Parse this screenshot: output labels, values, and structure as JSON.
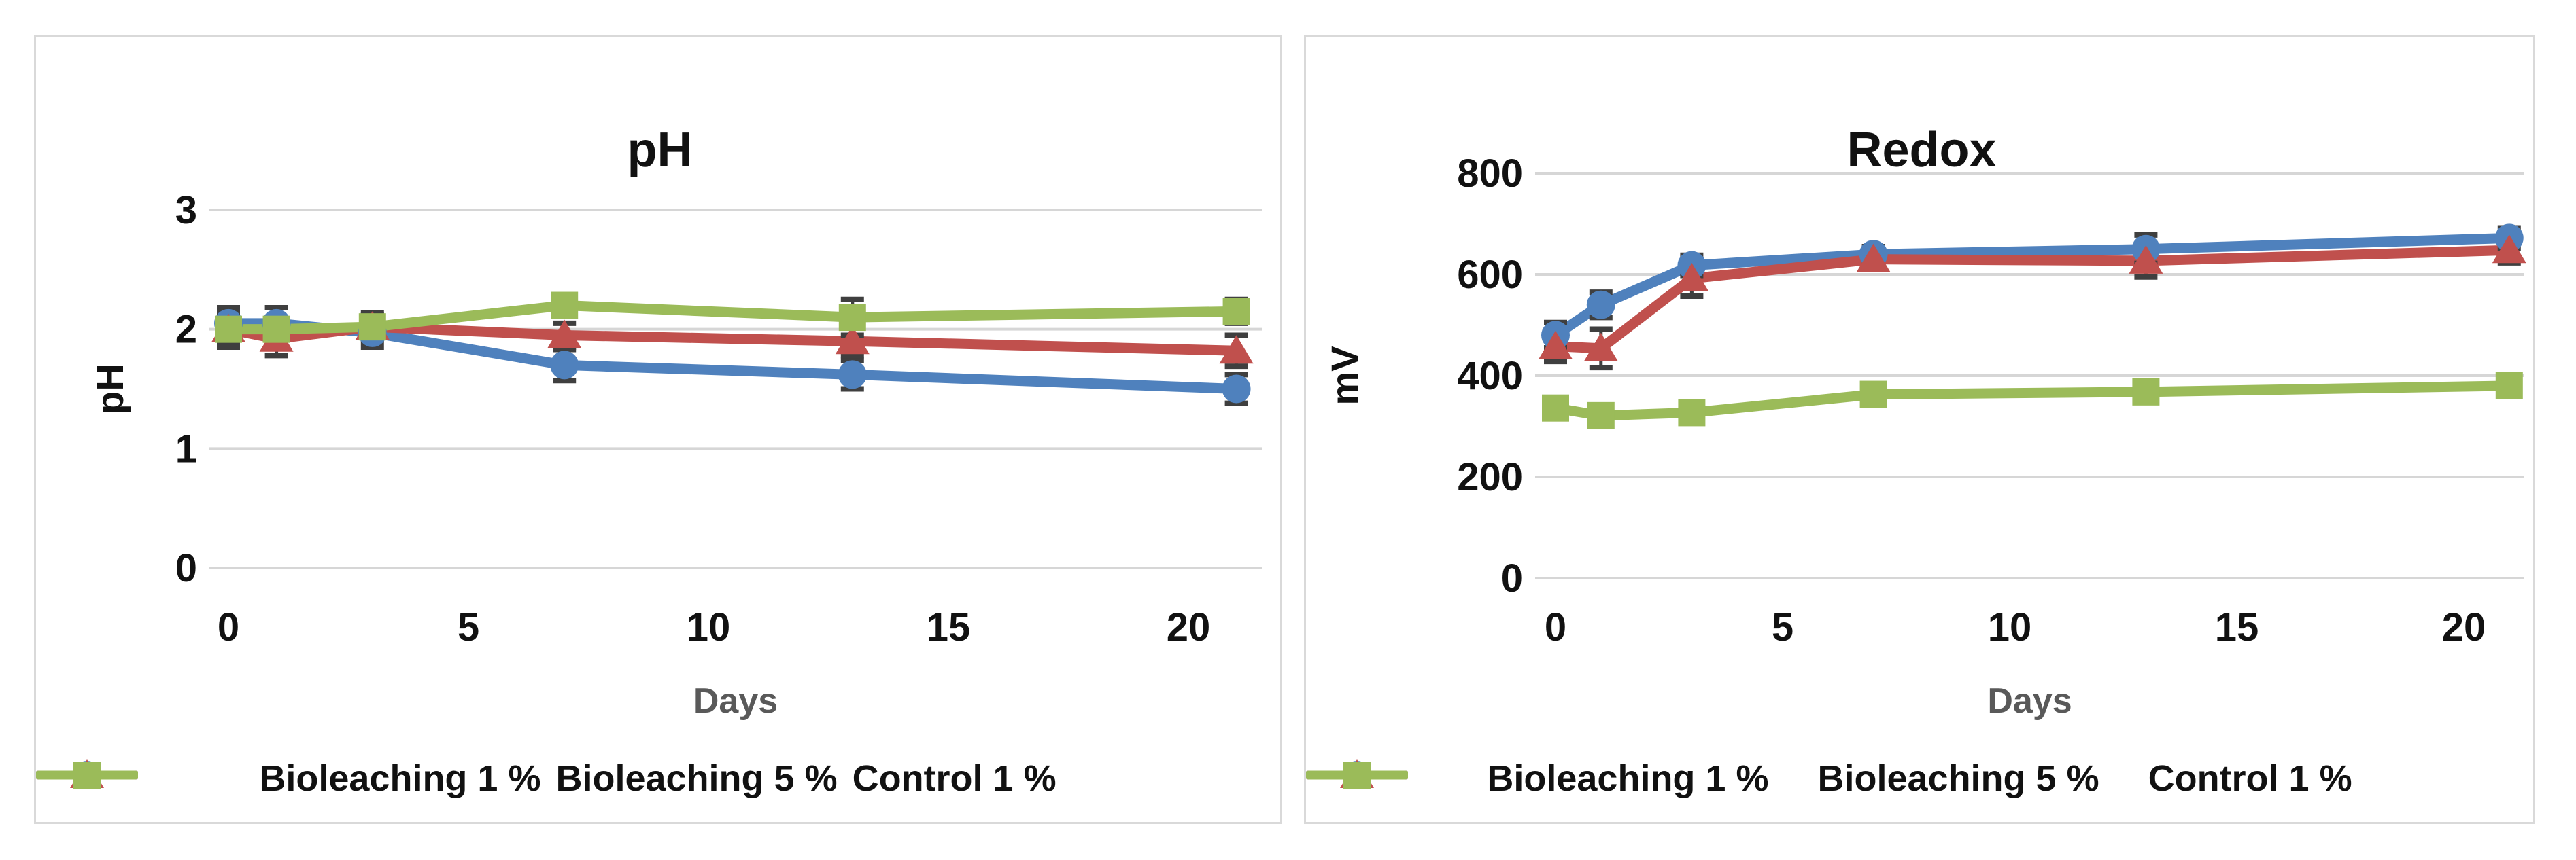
{
  "figure": {
    "background": "#ffffff",
    "panel_border_color": "#d9d9d9",
    "grid_color": "#d6d6d6",
    "error_bar_color": "#3f3f3f",
    "text_color": "#111111",
    "xlabel_color": "#595959"
  },
  "chart_data": [
    {
      "type": "line",
      "title": "pH",
      "ylabel": "pH",
      "xlabel": "Days",
      "x": [
        0,
        1,
        3,
        7,
        13,
        21
      ],
      "xticks": [
        0,
        5,
        10,
        15,
        20
      ],
      "yticks": [
        0,
        1,
        2,
        3
      ],
      "ylim": [
        0,
        3
      ],
      "xlim": [
        0,
        21.6
      ],
      "grid": true,
      "legend_position": "bottom",
      "series": [
        {
          "name": "Bioleaching 1 %",
          "color": "#4F81BD",
          "marker": "circle",
          "values": [
            2.05,
            2.05,
            1.97,
            1.7,
            1.62,
            1.5
          ],
          "errors": [
            0.13,
            0.13,
            0.12,
            0.13,
            0.12,
            0.12
          ]
        },
        {
          "name": "Bioleaching 5 %",
          "color": "#C0504D",
          "marker": "triangle",
          "values": [
            2.0,
            1.92,
            2.02,
            1.95,
            1.9,
            1.82
          ],
          "errors": [
            0.15,
            0.14,
            0.12,
            0.1,
            0.12,
            0.13
          ]
        },
        {
          "name": "Control 1 %",
          "color": "#9BBB59",
          "marker": "square",
          "values": [
            2.0,
            2.0,
            2.02,
            2.2,
            2.1,
            2.15
          ],
          "errors": [
            0.12,
            0.1,
            0.1,
            0.08,
            0.15,
            0.1
          ]
        }
      ]
    },
    {
      "type": "line",
      "title": "Redox",
      "ylabel": "mV",
      "xlabel": "Days",
      "x": [
        0,
        1,
        3,
        7,
        13,
        21
      ],
      "xticks": [
        0,
        5,
        10,
        15,
        20
      ],
      "yticks": [
        0,
        200,
        400,
        600,
        800
      ],
      "ylim": [
        0,
        800
      ],
      "xlim": [
        0,
        21.6
      ],
      "grid": true,
      "legend_position": "bottom",
      "series": [
        {
          "name": "Bioleaching 1 %",
          "color": "#4F81BD",
          "marker": "circle",
          "values": [
            480,
            540,
            618,
            640,
            650,
            672
          ],
          "errors": [
            25,
            25,
            20,
            15,
            28,
            20
          ]
        },
        {
          "name": "Bioleaching 5 %",
          "color": "#C0504D",
          "marker": "triangle",
          "values": [
            458,
            454,
            592,
            630,
            627,
            648
          ],
          "errors": [
            30,
            38,
            35,
            15,
            32,
            25
          ]
        },
        {
          "name": "Control 1 %",
          "color": "#9BBB59",
          "marker": "square",
          "values": [
            336,
            321,
            327,
            363,
            368,
            380
          ],
          "errors": [
            12,
            20,
            18,
            10,
            10,
            12
          ]
        }
      ]
    }
  ]
}
